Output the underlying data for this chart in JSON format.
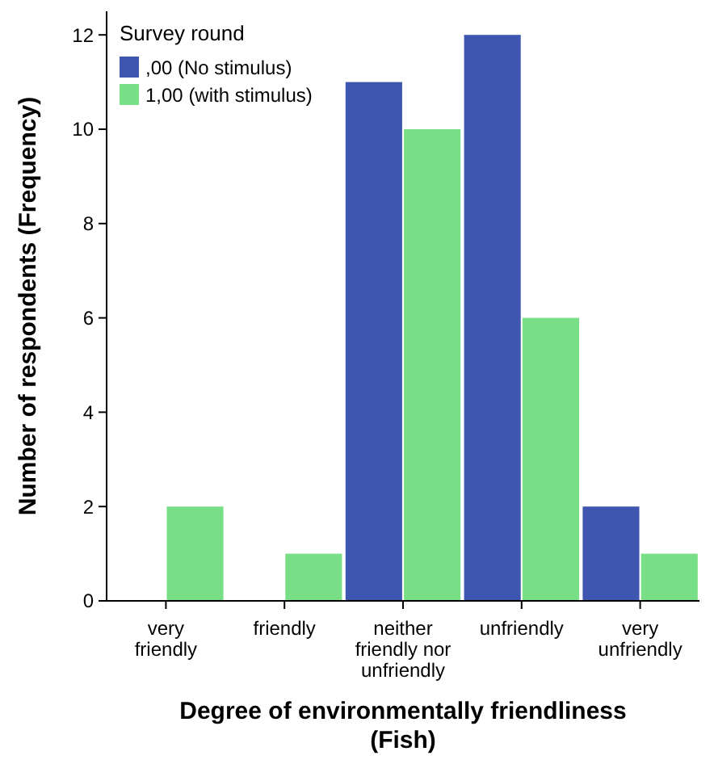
{
  "chart_data": {
    "type": "bar",
    "xlabel": "Degree of environmentally friendliness (Fish)",
    "ylabel": "Number of respondents (Frequency)",
    "legend_title": "Survey round",
    "categories": [
      "very friendly",
      "friendly",
      "neither friendly nor unfriendly",
      "unfriendly",
      "very unfriendly"
    ],
    "series": [
      {
        "name": ",00 (No stimulus)",
        "color": "#3f56b0",
        "values": [
          0,
          0,
          11,
          12,
          2
        ]
      },
      {
        "name": "1,00 (with stimulus)",
        "color": "#78df86",
        "values": [
          2,
          1,
          10,
          6,
          1
        ]
      }
    ],
    "ylim": [
      0,
      12.5
    ],
    "yticks": [
      0,
      2,
      4,
      6,
      8,
      10,
      12
    ],
    "grid": false,
    "legend": "top left"
  }
}
